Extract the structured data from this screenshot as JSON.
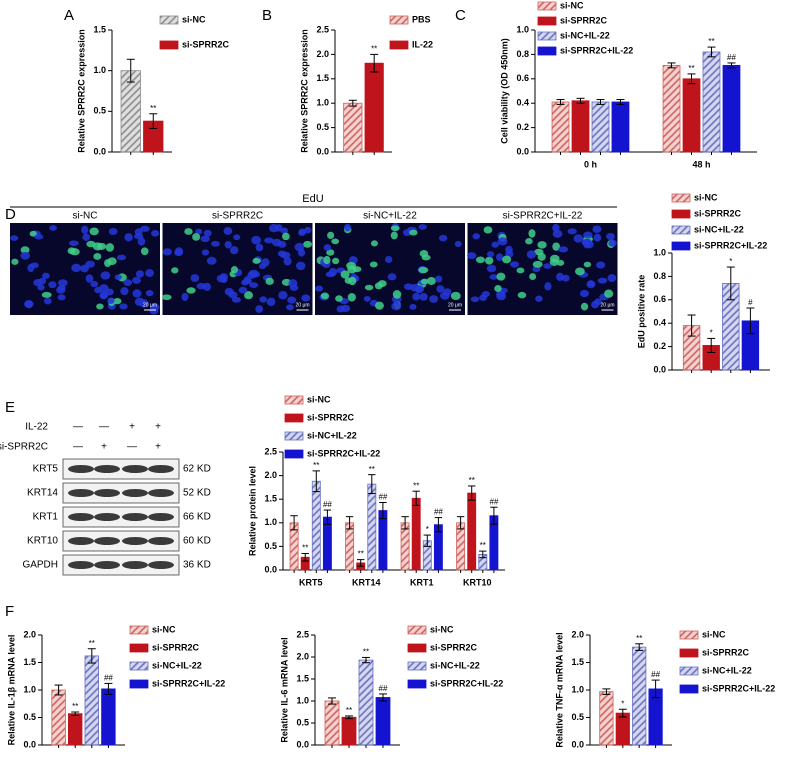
{
  "chart_data": [
    {
      "type": "bar",
      "panel": "A",
      "ylabel": "Relative SPRR2C expression",
      "ylim": [
        0,
        1.5
      ],
      "yticks": [
        {
          "value": 0,
          "label": "0.0"
        },
        0.5,
        {
          "value": 1,
          "label": "1.0"
        },
        1.5
      ],
      "series": [
        {
          "name": "si-NC",
          "color": "#8a8a8a",
          "hatch": true,
          "values": [
            1.0
          ],
          "errors": [
            0.14
          ],
          "annotations": [
            null
          ]
        },
        {
          "name": "si-SPRR2C",
          "color": "#c0141c",
          "hatch": false,
          "values": [
            0.38
          ],
          "errors": [
            0.09
          ],
          "annotations": [
            "**"
          ]
        }
      ]
    },
    {
      "type": "bar",
      "panel": "B",
      "ylabel": "Relative SPRR2C expression",
      "ylim": [
        0,
        2.5
      ],
      "yticks": [
        {
          "value": 0,
          "label": "0.0"
        },
        0.5,
        {
          "value": 1,
          "label": "1.0"
        },
        1.5,
        {
          "value": 2,
          "label": "2.0"
        },
        2.5
      ],
      "series": [
        {
          "name": "PBS",
          "color": "#d0605a",
          "hatch": true,
          "values": [
            1.0
          ],
          "errors": [
            0.06
          ],
          "annotations": [
            null
          ]
        },
        {
          "name": "IL-22",
          "color": "#c0141c",
          "hatch": false,
          "values": [
            1.82
          ],
          "errors": [
            0.18
          ],
          "annotations": [
            "**"
          ]
        }
      ]
    },
    {
      "type": "bar",
      "panel": "C",
      "ylabel": "Cell viability (OD 450nm)",
      "ylim": [
        0,
        1.0
      ],
      "yticks": [
        {
          "value": 0,
          "label": "0.0"
        },
        0.2,
        0.4,
        0.6,
        0.8,
        {
          "value": 1,
          "label": "1.0"
        }
      ],
      "categories": [
        "0 h",
        "48 h"
      ],
      "series": [
        {
          "name": "si-NC",
          "color": "#d0605a",
          "hatch": true,
          "values": [
            0.41,
            0.71
          ],
          "errors": [
            0.02,
            0.02
          ],
          "annotations": [
            null,
            null
          ]
        },
        {
          "name": "si-SPRR2C",
          "color": "#c0141c",
          "hatch": false,
          "values": [
            0.42,
            0.6
          ],
          "errors": [
            0.02,
            0.04
          ],
          "annotations": [
            null,
            "**"
          ]
        },
        {
          "name": "si-NC+IL-22",
          "color": "#6670c0",
          "hatch": true,
          "values": [
            0.41,
            0.82
          ],
          "errors": [
            0.02,
            0.04
          ],
          "annotations": [
            null,
            "**"
          ]
        },
        {
          "name": "si-SPRR2C+IL-22",
          "color": "#1414d0",
          "hatch": false,
          "values": [
            0.41,
            0.71
          ],
          "errors": [
            0.02,
            0.02
          ],
          "annotations": [
            null,
            "##"
          ]
        }
      ]
    },
    {
      "type": "bar",
      "panel": "D",
      "ylabel": "EdU positive rate",
      "ylim": [
        0,
        1.0
      ],
      "yticks": [
        {
          "value": 0,
          "label": "0.0"
        },
        0.2,
        0.4,
        0.6,
        0.8,
        {
          "value": 1,
          "label": "1.0"
        }
      ],
      "series": [
        {
          "name": "si-NC",
          "color": "#d0605a",
          "hatch": true,
          "values": [
            0.38
          ],
          "errors": [
            0.09
          ],
          "annotations": [
            null
          ]
        },
        {
          "name": "si-SPRR2C",
          "color": "#c0141c",
          "hatch": false,
          "values": [
            0.21
          ],
          "errors": [
            0.06
          ],
          "annotations": [
            "*"
          ]
        },
        {
          "name": "si-NC+IL-22",
          "color": "#6670c0",
          "hatch": true,
          "values": [
            0.74
          ],
          "errors": [
            0.14
          ],
          "annotations": [
            "*"
          ]
        },
        {
          "name": "si-SPRR2C+IL-22",
          "color": "#1414d0",
          "hatch": false,
          "values": [
            0.42
          ],
          "errors": [
            0.11
          ],
          "annotations": [
            "#"
          ]
        }
      ]
    },
    {
      "type": "bar",
      "panel": "E",
      "ylabel": "Relative protein level",
      "ylim": [
        0,
        2.5
      ],
      "yticks": [
        {
          "value": 0,
          "label": "0.0"
        },
        0.5,
        {
          "value": 1,
          "label": "1.0"
        },
        1.5,
        {
          "value": 2,
          "label": "2.0"
        },
        2.5
      ],
      "categories": [
        "KRT5",
        "KRT14",
        "KRT1",
        "KRT10"
      ],
      "series": [
        {
          "name": "si-NC",
          "color": "#d0605a",
          "hatch": true,
          "values": [
            1.0,
            1.0,
            1.0,
            1.0
          ],
          "errors": [
            0.15,
            0.13,
            0.13,
            0.13
          ],
          "annotations": [
            null,
            null,
            null,
            null
          ]
        },
        {
          "name": "si-SPRR2C",
          "color": "#c0141c",
          "hatch": false,
          "values": [
            0.27,
            0.15,
            1.52,
            1.63
          ],
          "errors": [
            0.08,
            0.07,
            0.15,
            0.15
          ],
          "annotations": [
            "**",
            "**",
            "**",
            "**"
          ]
        },
        {
          "name": "si-NC+IL-22",
          "color": "#6670c0",
          "hatch": true,
          "values": [
            1.88,
            1.82,
            0.62,
            0.33
          ],
          "errors": [
            0.22,
            0.2,
            0.12,
            0.07
          ],
          "annotations": [
            "**",
            "**",
            "*",
            "**"
          ]
        },
        {
          "name": "si-SPRR2C+IL-22",
          "color": "#1414d0",
          "hatch": false,
          "values": [
            1.12,
            1.26,
            0.96,
            1.15
          ],
          "errors": [
            0.15,
            0.17,
            0.15,
            0.18
          ],
          "annotations": [
            "##",
            "##",
            "##",
            "##"
          ]
        }
      ]
    },
    {
      "type": "bar",
      "panel": "F",
      "ylabel": "Relative IL-1β mRNA level",
      "ylim": [
        0,
        2.0
      ],
      "yticks": [
        {
          "value": 0,
          "label": "0.0"
        },
        0.5,
        {
          "value": 1,
          "label": "1.0"
        },
        1.5,
        {
          "value": 2,
          "label": "2.0"
        }
      ],
      "series": [
        {
          "name": "si-NC",
          "color": "#d0605a",
          "hatch": true,
          "values": [
            1.0
          ],
          "errors": [
            0.09
          ],
          "annotations": [
            null
          ]
        },
        {
          "name": "si-SPRR2C",
          "color": "#c0141c",
          "hatch": false,
          "values": [
            0.57
          ],
          "errors": [
            0.03
          ],
          "annotations": [
            "**"
          ]
        },
        {
          "name": "si-NC+IL-22",
          "color": "#6670c0",
          "hatch": true,
          "values": [
            1.62
          ],
          "errors": [
            0.13
          ],
          "annotations": [
            "**"
          ]
        },
        {
          "name": "si-SPRR2C+IL-22",
          "color": "#1414d0",
          "hatch": false,
          "values": [
            1.02
          ],
          "errors": [
            0.1
          ],
          "annotations": [
            "##"
          ]
        }
      ]
    },
    {
      "type": "bar",
      "ylabel": "Relative IL-6 mRNA level",
      "ylim": [
        0,
        2.5
      ],
      "yticks": [
        {
          "value": 0,
          "label": "0.0"
        },
        0.5,
        {
          "value": 1,
          "label": "1.0"
        },
        1.5,
        {
          "value": 2,
          "label": "2.0"
        },
        2.5
      ],
      "series": [
        {
          "name": "si-NC",
          "color": "#d0605a",
          "hatch": true,
          "values": [
            1.0
          ],
          "errors": [
            0.07
          ],
          "annotations": [
            null
          ]
        },
        {
          "name": "si-SPRR2C",
          "color": "#c0141c",
          "hatch": false,
          "values": [
            0.63
          ],
          "errors": [
            0.03
          ],
          "annotations": [
            "**"
          ]
        },
        {
          "name": "si-NC+IL-22",
          "color": "#6670c0",
          "hatch": true,
          "values": [
            1.93
          ],
          "errors": [
            0.06
          ],
          "annotations": [
            "**"
          ]
        },
        {
          "name": "si-SPRR2C+IL-22",
          "color": "#1414d0",
          "hatch": false,
          "values": [
            1.08
          ],
          "errors": [
            0.08
          ],
          "annotations": [
            "##"
          ]
        }
      ]
    },
    {
      "type": "bar",
      "ylabel": "Relative TNF-α mRNA level",
      "ylim": [
        0,
        2.0
      ],
      "yticks": [
        {
          "value": 0,
          "label": "0.0"
        },
        0.5,
        {
          "value": 1,
          "label": "1.0"
        },
        1.5,
        {
          "value": 2,
          "label": "2.0"
        }
      ],
      "series": [
        {
          "name": "si-NC",
          "color": "#d0605a",
          "hatch": true,
          "values": [
            0.97
          ],
          "errors": [
            0.05
          ],
          "annotations": [
            null
          ]
        },
        {
          "name": "si-SPRR2C",
          "color": "#c0141c",
          "hatch": false,
          "values": [
            0.58
          ],
          "errors": [
            0.07
          ],
          "annotations": [
            "*"
          ]
        },
        {
          "name": "si-NC+IL-22",
          "color": "#6670c0",
          "hatch": true,
          "values": [
            1.78
          ],
          "errors": [
            0.06
          ],
          "annotations": [
            "**"
          ]
        },
        {
          "name": "si-SPRR2C+IL-22",
          "color": "#1414d0",
          "hatch": false,
          "values": [
            1.02
          ],
          "errors": [
            0.16
          ],
          "annotations": [
            "##"
          ]
        }
      ]
    }
  ],
  "edu_images": {
    "title": "EdU",
    "labels": [
      "si-NC",
      "si-SPRR2C",
      "si-NC+IL-22",
      "si-SPRR2C+IL-22"
    ],
    "scale_bar": "20 μm"
  },
  "western_blot": {
    "conditions": [
      {
        "label": "IL-22",
        "signs": [
          "—",
          "—",
          "+",
          "+"
        ]
      },
      {
        "label": "si-SPRR2C",
        "signs": [
          "—",
          "+",
          "—",
          "+"
        ]
      }
    ],
    "rows": [
      {
        "protein": "KRT5",
        "size": "62 KD"
      },
      {
        "protein": "KRT14",
        "size": "52 KD"
      },
      {
        "protein": "KRT1",
        "size": "66 KD"
      },
      {
        "protein": "KRT10",
        "size": "60 KD"
      },
      {
        "protein": "GAPDH",
        "size": "36 KD"
      }
    ]
  }
}
